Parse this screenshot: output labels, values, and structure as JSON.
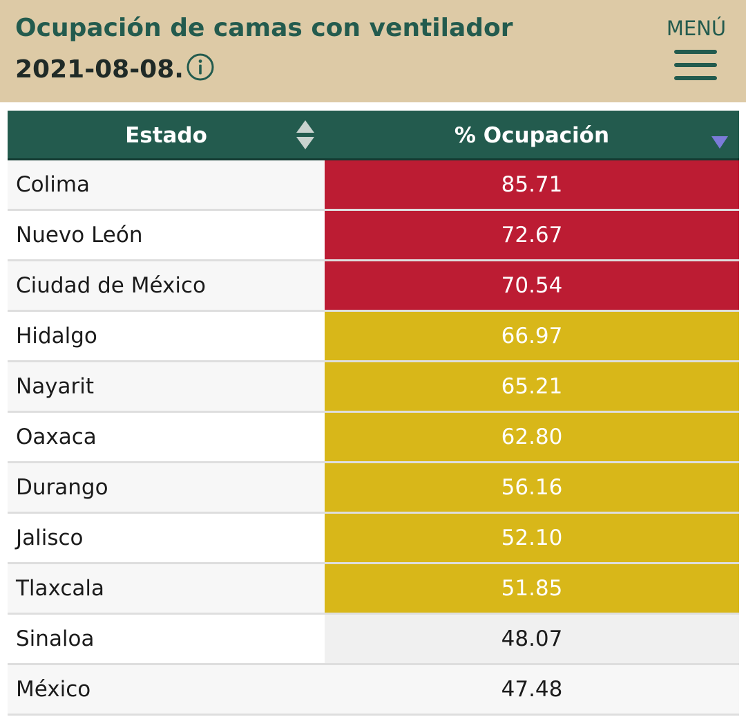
{
  "header": {
    "title_line1": "Ocupación de camas con ventilador",
    "title_line2": "2021-08-08.",
    "info_icon": "info-circle-icon",
    "menu_label": "MENÚ",
    "menu_icon": "hamburger-icon"
  },
  "colors": {
    "header_bg": "#ddcaa6",
    "title_green": "#235b4e",
    "table_header_bg": "#235b4e",
    "high": "#bc1c33",
    "medium": "#d8b719",
    "low": "#ffffff",
    "sort_active": "#7b7bd9"
  },
  "table": {
    "columns": [
      {
        "label": "Estado",
        "sort": "none",
        "sort_icon": "sort-both-icon"
      },
      {
        "label": "% Ocupación",
        "sort": "desc",
        "sort_icon": "sort-desc-icon"
      }
    ],
    "rows": [
      {
        "estado": "Colima",
        "ocupacion": "85.71",
        "level": "high"
      },
      {
        "estado": "Nuevo León",
        "ocupacion": "72.67",
        "level": "high"
      },
      {
        "estado": "Ciudad de México",
        "ocupacion": "70.54",
        "level": "high"
      },
      {
        "estado": "Hidalgo",
        "ocupacion": "66.97",
        "level": "medium"
      },
      {
        "estado": "Nayarit",
        "ocupacion": "65.21",
        "level": "medium"
      },
      {
        "estado": "Oaxaca",
        "ocupacion": "62.80",
        "level": "medium"
      },
      {
        "estado": "Durango",
        "ocupacion": "56.16",
        "level": "medium"
      },
      {
        "estado": "Jalisco",
        "ocupacion": "52.10",
        "level": "medium"
      },
      {
        "estado": "Tlaxcala",
        "ocupacion": "51.85",
        "level": "medium"
      },
      {
        "estado": "Sinaloa",
        "ocupacion": "48.07",
        "level": "low"
      },
      {
        "estado": "México",
        "ocupacion": "47.48",
        "level": "low"
      }
    ]
  }
}
